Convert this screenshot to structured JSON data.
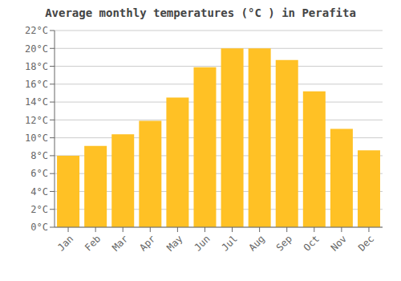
{
  "chart_data": {
    "type": "bar",
    "title": "Average monthly temperatures (°C ) in Perafita",
    "categories": [
      "Jan",
      "Feb",
      "Mar",
      "Apr",
      "May",
      "Jun",
      "Jul",
      "Aug",
      "Sep",
      "Oct",
      "Nov",
      "Dec"
    ],
    "values": [
      8.0,
      9.1,
      10.4,
      11.9,
      14.5,
      17.9,
      20.0,
      20.0,
      18.7,
      15.2,
      11.0,
      8.6
    ],
    "color": "#FFC125",
    "ylim": [
      0,
      22
    ],
    "yticks": [
      {
        "value": 0,
        "label": "0°C"
      },
      {
        "value": 2,
        "label": "2°C"
      },
      {
        "value": 4,
        "label": "4°C"
      },
      {
        "value": 6,
        "label": "6°C"
      },
      {
        "value": 8,
        "label": "8°C"
      },
      {
        "value": 10,
        "label": "10°C"
      },
      {
        "value": 12,
        "label": "12°C"
      },
      {
        "value": 14,
        "label": "14°C"
      },
      {
        "value": 16,
        "label": "16°C"
      },
      {
        "value": 18,
        "label": "18°C"
      },
      {
        "value": 20,
        "label": "20°C"
      },
      {
        "value": 22,
        "label": "22°C"
      }
    ],
    "grid": true
  }
}
